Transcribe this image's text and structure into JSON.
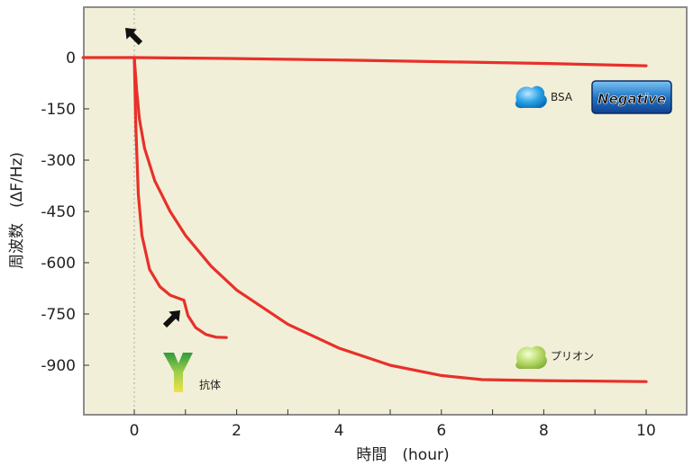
{
  "chart_data": {
    "type": "line",
    "xlabel": "時間　(hour)",
    "ylabel": "周波数　(ΔF/Hz)",
    "xlim": [
      -1,
      11
    ],
    "ylim": [
      -1050,
      150
    ],
    "x_ticks": [
      0,
      2,
      4,
      6,
      8,
      10
    ],
    "y_ticks": [
      0,
      -150,
      -300,
      -450,
      -600,
      -750,
      -900
    ],
    "grid": false,
    "background": "#f2efd8",
    "series": [
      {
        "name": "BSA",
        "color": "#e8302a",
        "points": [
          [
            -1,
            0
          ],
          [
            0,
            0
          ],
          [
            2,
            -3
          ],
          [
            4,
            -7
          ],
          [
            6,
            -12
          ],
          [
            8,
            -17
          ],
          [
            10,
            -24
          ]
        ]
      },
      {
        "name": "プリオン",
        "color": "#e8302a",
        "points": [
          [
            0,
            0
          ],
          [
            0.05,
            -100
          ],
          [
            0.1,
            -180
          ],
          [
            0.2,
            -265
          ],
          [
            0.4,
            -360
          ],
          [
            0.7,
            -450
          ],
          [
            1,
            -520
          ],
          [
            1.5,
            -610
          ],
          [
            2,
            -680
          ],
          [
            3,
            -780
          ],
          [
            4,
            -850
          ],
          [
            5,
            -900
          ],
          [
            6,
            -930
          ],
          [
            6.8,
            -942
          ],
          [
            8,
            -945
          ],
          [
            10,
            -948
          ]
        ]
      },
      {
        "name": "抗体",
        "color": "#e8302a",
        "points": [
          [
            0,
            0
          ],
          [
            0.03,
            -200
          ],
          [
            0.08,
            -400
          ],
          [
            0.15,
            -520
          ],
          [
            0.3,
            -620
          ],
          [
            0.5,
            -670
          ],
          [
            0.7,
            -695
          ],
          [
            0.97,
            -710
          ],
          [
            1.05,
            -755
          ],
          [
            1.2,
            -790
          ],
          [
            1.4,
            -810
          ],
          [
            1.6,
            -818
          ],
          [
            1.8,
            -819
          ]
        ]
      }
    ],
    "annotations": {
      "bsa_label": "BSA",
      "negative_label": "Negative",
      "prion_label": "プリオン",
      "antibody_label": "抗体",
      "arrows": [
        {
          "at": [
            0,
            0
          ],
          "meaning": "injection"
        },
        {
          "at": [
            1,
            -710
          ],
          "meaning": "injection"
        }
      ]
    }
  }
}
